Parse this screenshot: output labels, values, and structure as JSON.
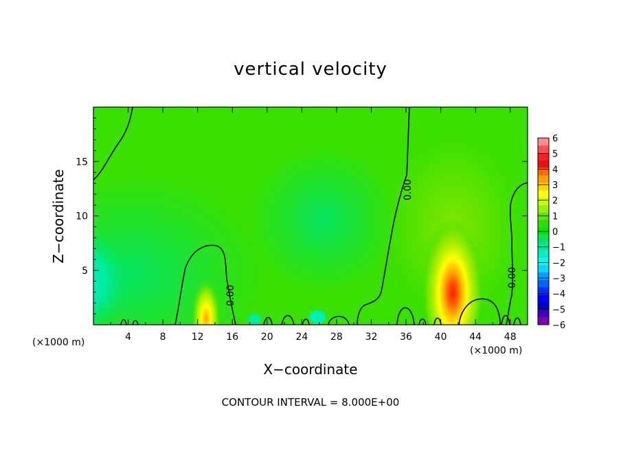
{
  "chart_data": {
    "type": "contour",
    "title": "vertical velocity",
    "xlabel": "X−coordinate",
    "ylabel": "Z−coordinate",
    "x_unit": "(×1000 m)",
    "z_unit": "(×1000 m)",
    "xlim": [
      0,
      50
    ],
    "ylim": [
      0,
      20
    ],
    "x_ticks": [
      "4",
      "8",
      "12",
      "16",
      "20",
      "24",
      "28",
      "32",
      "36",
      "40",
      "44",
      "48"
    ],
    "x_tick_values": [
      4,
      8,
      12,
      16,
      20,
      24,
      28,
      32,
      36,
      40,
      44,
      48
    ],
    "y_ticks": [
      "5",
      "10",
      "15"
    ],
    "y_tick_values": [
      5,
      10,
      15
    ],
    "contour_interval_text": "CONTOUR INTERVAL = 8.000E+00",
    "contour_labels": [
      "0.00",
      "0.00",
      "0.00"
    ],
    "colorbar": {
      "labels": [
        "6",
        "5",
        "4",
        "3",
        "2",
        "1",
        "0",
        "−1",
        "−2",
        "−3",
        "−4",
        "−5",
        "−6"
      ],
      "range": [
        -6,
        6
      ],
      "colors": [
        "#ff9090",
        "#ff5050",
        "#ff2020",
        "#e81010",
        "#ff6a00",
        "#ff9e00",
        "#ffd200",
        "#ffff00",
        "#c8ff00",
        "#96f000",
        "#5ae600",
        "#2ddc00",
        "#00e800",
        "#00e65a",
        "#00eb8c",
        "#00f0c0",
        "#00ffee",
        "#00d8ff",
        "#00a0ff",
        "#0064ff",
        "#0030ff",
        "#0000ff",
        "#0000c8",
        "#4000c0",
        "#8000b4"
      ]
    },
    "features": [
      {
        "name": "updraft",
        "x": 41,
        "z": 2.5,
        "peak": 5
      },
      {
        "name": "updraft",
        "x": 13,
        "z": 1,
        "peak": 3
      },
      {
        "name": "downdraft",
        "x": 0.5,
        "z": 4,
        "peak": -2
      }
    ]
  }
}
